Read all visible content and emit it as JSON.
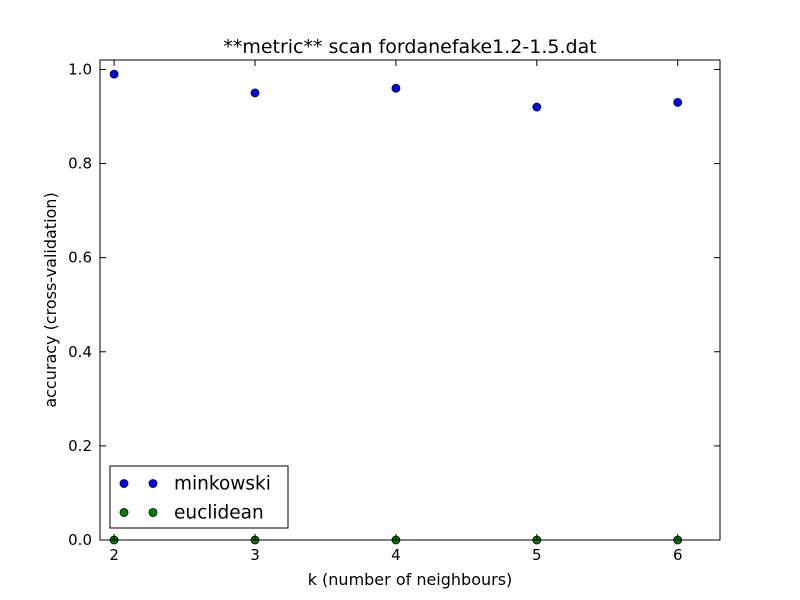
{
  "chart_data": {
    "type": "scatter",
    "title": "**metric** scan fordanefake1.2-1.5.dat",
    "xlabel": "k (number of neighbours)",
    "ylabel": "accuracy (cross-validation)",
    "xlim": [
      1.9,
      6.3
    ],
    "ylim": [
      0.0,
      1.02
    ],
    "xticks": [
      2,
      3,
      4,
      5,
      6
    ],
    "xtick_labels": [
      "2",
      "3",
      "4",
      "5",
      "6"
    ],
    "yticks": [
      0.0,
      0.2,
      0.4,
      0.6,
      0.8,
      1.0
    ],
    "ytick_labels": [
      "0.0",
      "0.2",
      "0.4",
      "0.6",
      "0.8",
      "1.0"
    ],
    "grid": false,
    "legend_position": "lower-left",
    "series": [
      {
        "name": "minkowski",
        "color": "#0000ff",
        "x": [
          2,
          3,
          4,
          5,
          6
        ],
        "y": [
          0.99,
          0.95,
          0.96,
          0.92,
          0.93
        ]
      },
      {
        "name": "euclidean",
        "color": "#008000",
        "x": [
          2,
          3,
          4,
          5,
          6
        ],
        "y": [
          0.0,
          0.0,
          0.0,
          0.0,
          0.0
        ]
      }
    ]
  }
}
